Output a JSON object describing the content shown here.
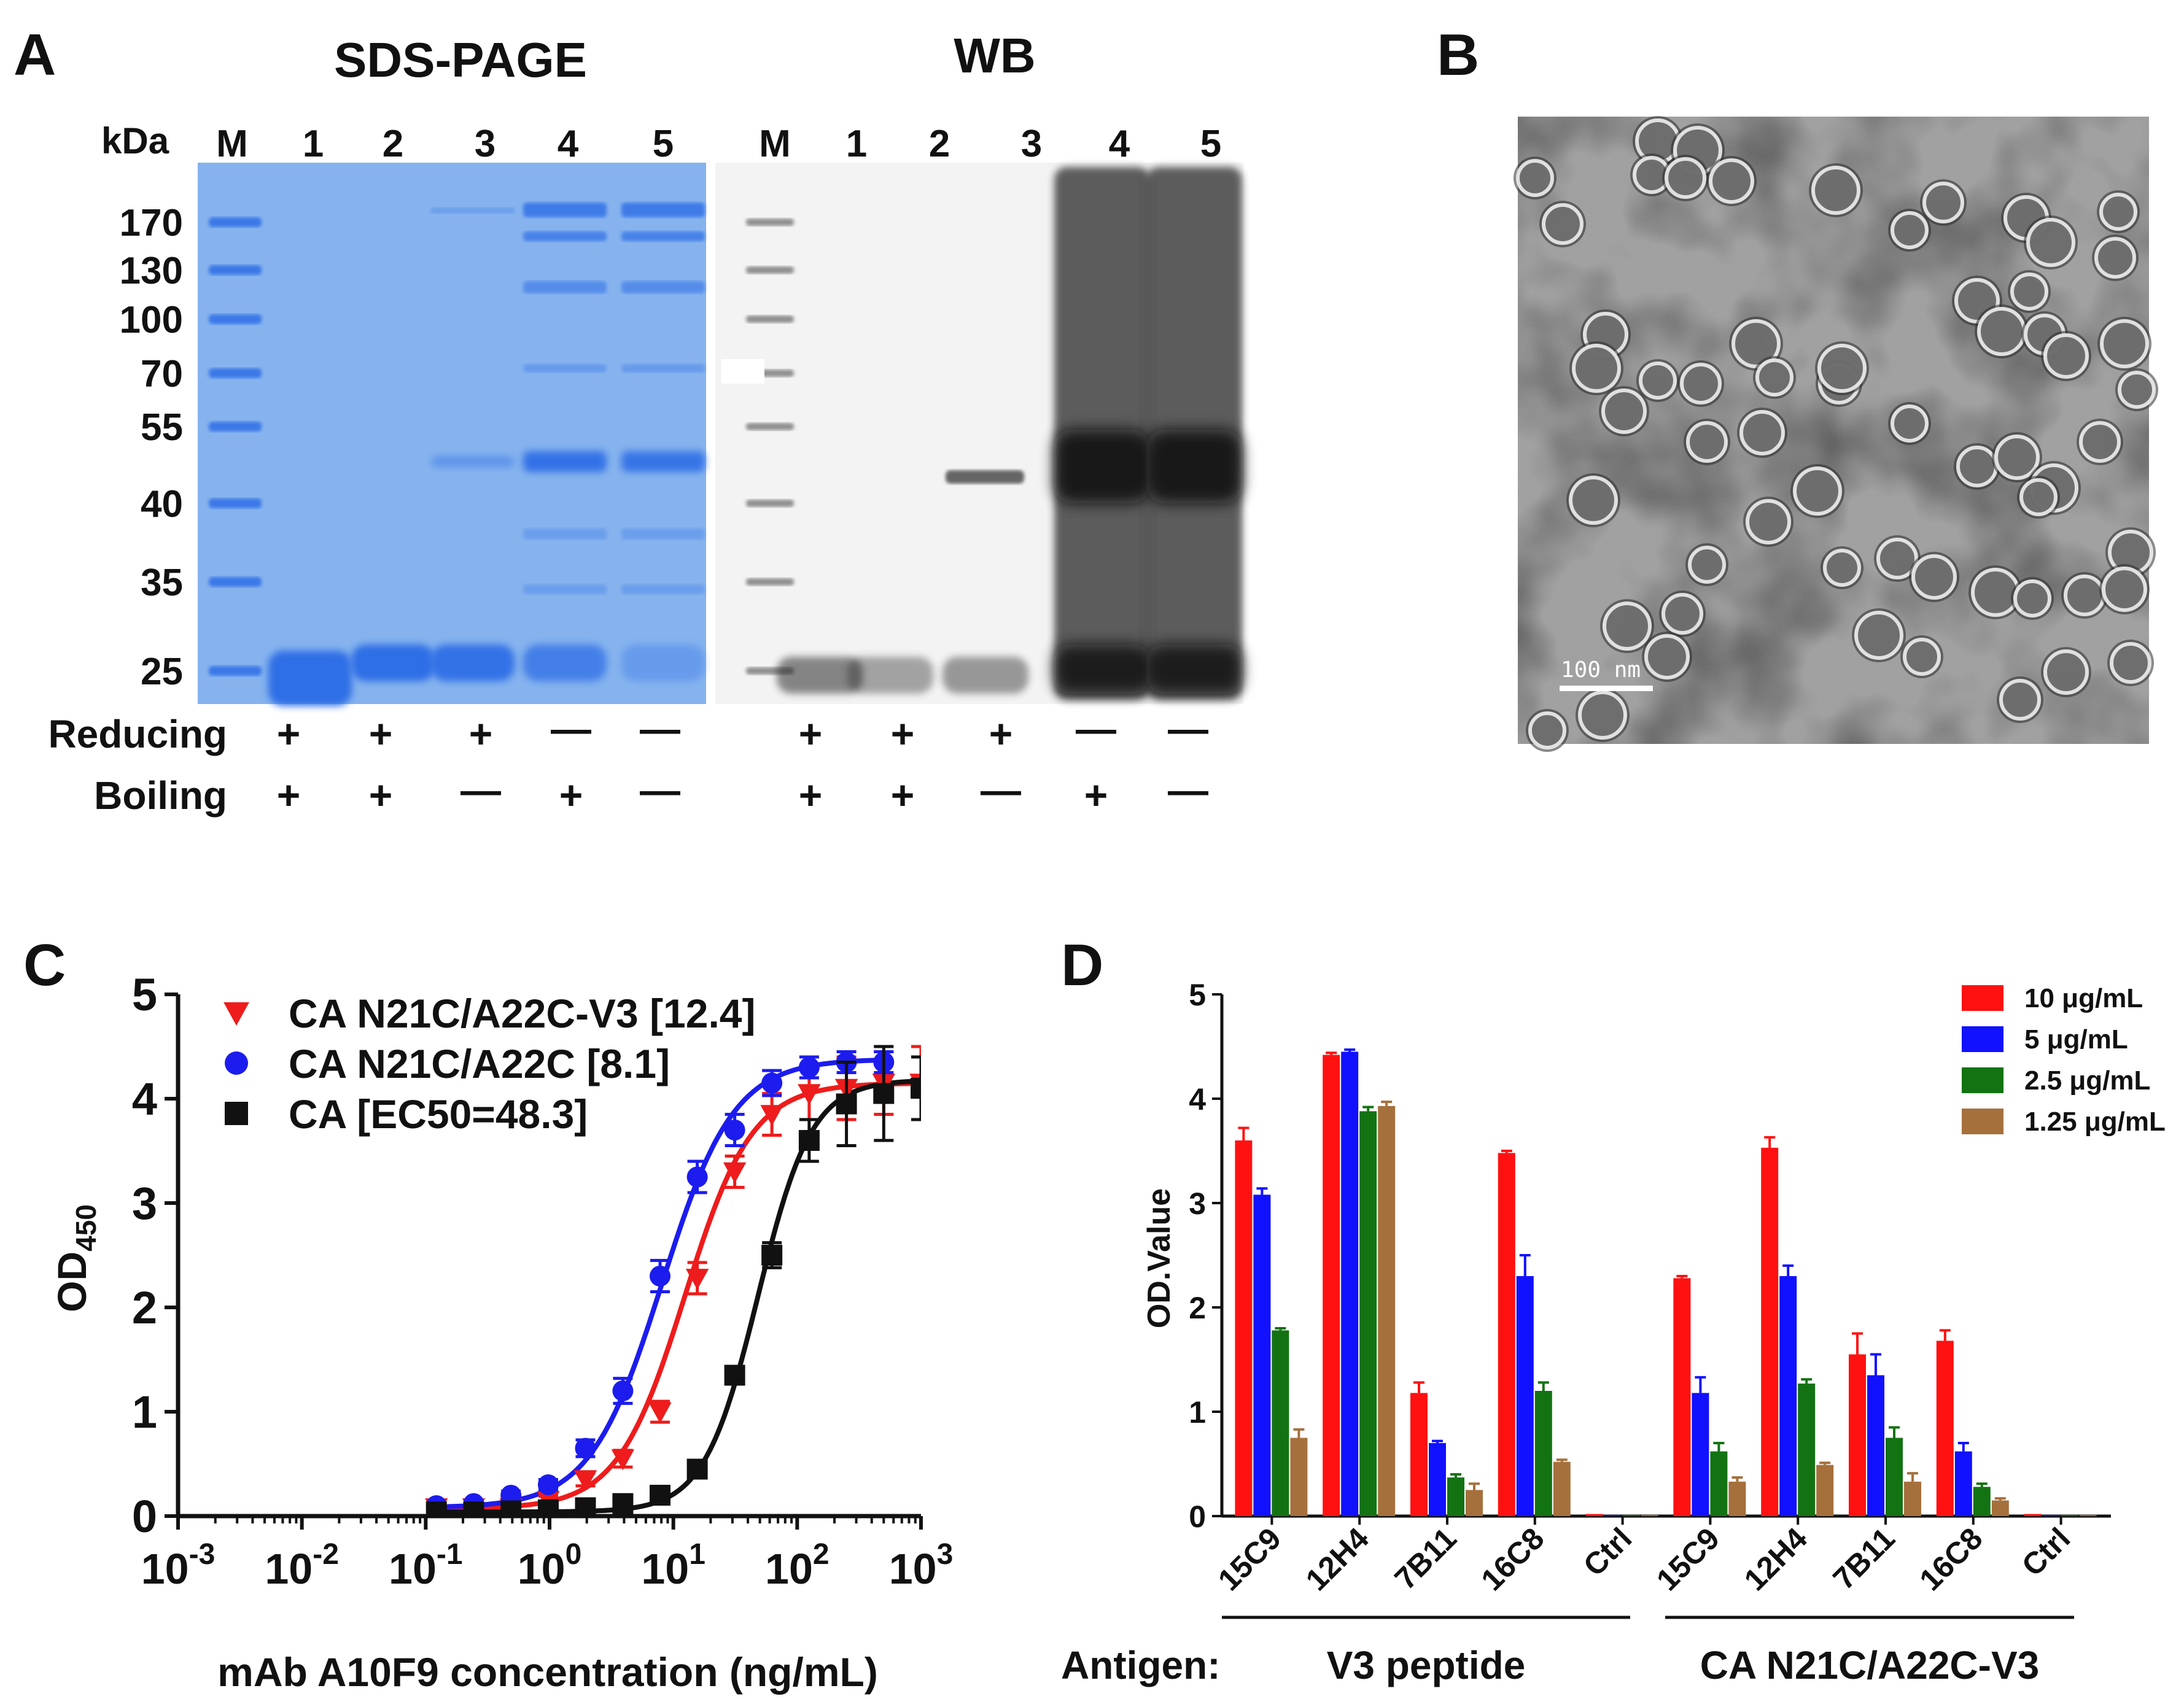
{
  "figure": {
    "panel_labels": [
      "A",
      "B",
      "C",
      "D"
    ]
  },
  "panel_a": {
    "sds_title": "SDS-PAGE",
    "wb_title": "WB",
    "kda_label": "kDa",
    "lane_labels": [
      "M",
      "1",
      "2",
      "3",
      "4",
      "5"
    ],
    "mw_markers": [
      "170",
      "130",
      "100",
      "70",
      "55",
      "40",
      "35",
      "25"
    ],
    "row_labels": [
      "Reducing",
      "Boiling"
    ],
    "reducing": [
      "+",
      "+",
      "+",
      "—",
      "—"
    ],
    "boiling": [
      "+",
      "+",
      "—",
      "+",
      "—"
    ],
    "colors": {
      "gel": "#86b3ee",
      "band": "#2f6ee6",
      "blot": "#f2f2f2",
      "blot_band": "#2a2a2a"
    }
  },
  "panel_b": {
    "scale_bar": "100 nm"
  },
  "chart_data": [
    {
      "panel": "C",
      "type": "line",
      "title": "",
      "xlabel": "mAb A10F9 concentration (ng/mL)",
      "ylabel": "OD",
      "ylabel_sub": "450",
      "xscale": "log10",
      "xlim": [
        0.001,
        1000
      ],
      "ylim": [
        0,
        5
      ],
      "x_tick_base": "10",
      "x_tick_exponents": [
        "-3",
        "-2",
        "-1",
        "0",
        "1",
        "2",
        "3"
      ],
      "y_ticks": [
        "0",
        "1",
        "2",
        "3",
        "4",
        "5"
      ],
      "legend_position": "top-left",
      "series": [
        {
          "name": "CA N21C/A22C-V3 [12.4]",
          "marker": "triangle-down",
          "color": "#ee1c1c",
          "x": [
            0.122,
            0.244,
            0.488,
            0.977,
            1.95,
            3.91,
            7.81,
            15.6,
            31.3,
            62.5,
            125,
            250,
            500,
            1000
          ],
          "y": [
            0.08,
            0.08,
            0.08,
            0.15,
            0.35,
            0.55,
            1.0,
            2.28,
            3.3,
            3.85,
            4.05,
            4.1,
            4.15,
            4.15
          ],
          "err": [
            0.03,
            0.03,
            0.03,
            0.04,
            0.06,
            0.08,
            0.1,
            0.15,
            0.15,
            0.2,
            0.25,
            0.3,
            0.3,
            0.35
          ],
          "ec50": 12.4,
          "top": 4.15,
          "bottom": 0.07,
          "hill": 1.6
        },
        {
          "name": "CA N21C/A22C [8.1]",
          "marker": "circle",
          "color": "#1c1cee",
          "x": [
            0.122,
            0.244,
            0.488,
            0.977,
            1.95,
            3.91,
            7.81,
            15.6,
            31.3,
            62.5,
            125,
            250,
            500
          ],
          "y": [
            0.1,
            0.12,
            0.2,
            0.3,
            0.65,
            1.2,
            2.3,
            3.25,
            3.7,
            4.15,
            4.3,
            4.35,
            4.35
          ],
          "err": [
            0.03,
            0.03,
            0.04,
            0.05,
            0.08,
            0.12,
            0.15,
            0.15,
            0.15,
            0.12,
            0.1,
            0.1,
            0.1
          ],
          "ec50": 8.1,
          "top": 4.38,
          "bottom": 0.08,
          "hill": 1.5
        },
        {
          "name": "CA [EC50=48.3]",
          "marker": "square",
          "color": "#111111",
          "x": [
            0.122,
            0.244,
            0.488,
            0.977,
            1.95,
            3.91,
            7.81,
            15.6,
            31.3,
            62.5,
            125,
            250,
            500,
            1000
          ],
          "y": [
            0.04,
            0.04,
            0.05,
            0.06,
            0.08,
            0.12,
            0.2,
            0.45,
            1.35,
            2.5,
            3.6,
            3.95,
            4.05,
            4.1
          ],
          "err": [
            0.02,
            0.02,
            0.02,
            0.02,
            0.02,
            0.03,
            0.04,
            0.06,
            0.08,
            0.12,
            0.2,
            0.4,
            0.45,
            0.3
          ],
          "ec50": 48.3,
          "top": 4.18,
          "bottom": 0.04,
          "hill": 2.0
        }
      ]
    },
    {
      "panel": "D",
      "type": "bar",
      "title": "",
      "xlabel": "",
      "ylabel": "OD.Value",
      "ylim": [
        0,
        5
      ],
      "y_ticks": [
        "0",
        "1",
        "2",
        "3",
        "4",
        "5"
      ],
      "legend_position": "top-right",
      "categories": [
        "15C9",
        "12H4",
        "7B11",
        "16C8",
        "Ctrl",
        "15C9",
        "12H4",
        "7B11",
        "16C8",
        "Ctrl"
      ],
      "groups": [
        {
          "label": "V3 peptide",
          "from": 0,
          "to": 4
        },
        {
          "label": "CA N21C/A22C-V3",
          "from": 5,
          "to": 9
        }
      ],
      "antigen_label": "Antigen:",
      "series": [
        {
          "name": "10 μg/mL",
          "color": "#ff1111",
          "values": [
            3.6,
            4.42,
            1.18,
            3.48,
            0.02,
            2.28,
            3.53,
            1.55,
            1.68,
            0.02
          ],
          "err": [
            0.12,
            0.02,
            0.1,
            0.02,
            0,
            0.02,
            0.1,
            0.2,
            0.1,
            0
          ]
        },
        {
          "name": "5 μg/mL",
          "color": "#1111ff",
          "values": [
            3.08,
            4.45,
            0.7,
            2.3,
            0.01,
            1.18,
            2.3,
            1.35,
            0.62,
            0.01
          ],
          "err": [
            0.06,
            0.02,
            0.02,
            0.2,
            0,
            0.15,
            0.1,
            0.2,
            0.08,
            0
          ]
        },
        {
          "name": "2.5 μg/mL",
          "color": "#137313",
          "values": [
            1.78,
            3.88,
            0.37,
            1.2,
            0.01,
            0.62,
            1.27,
            0.75,
            0.28,
            0.01
          ],
          "err": [
            0.02,
            0.04,
            0.03,
            0.08,
            0,
            0.08,
            0.04,
            0.1,
            0.03,
            0
          ]
        },
        {
          "name": "1.25 μg/mL",
          "color": "#a5703c",
          "values": [
            0.75,
            3.93,
            0.25,
            0.52,
            0.01,
            0.33,
            0.49,
            0.33,
            0.15,
            0.01
          ],
          "err": [
            0.08,
            0.04,
            0.06,
            0.02,
            0,
            0.04,
            0.02,
            0.08,
            0.02,
            0
          ]
        }
      ]
    }
  ]
}
